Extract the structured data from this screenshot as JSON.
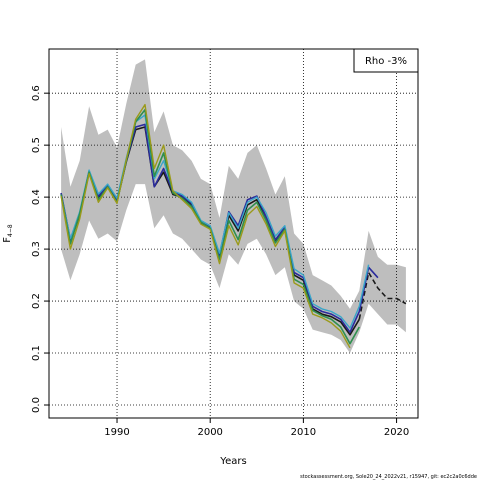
{
  "chart_data": {
    "type": "line",
    "xlabel": "Years",
    "ylabel": "F",
    "ylabel_subscript": "4−8",
    "xlim": [
      1982.7,
      2022.3
    ],
    "ylim": [
      -0.025,
      0.685
    ],
    "x_ticks": [
      1990,
      2000,
      2010,
      2020
    ],
    "y_ticks": [
      0.0,
      0.1,
      0.2,
      0.3,
      0.4,
      0.5,
      0.6
    ],
    "y_tick_labels": [
      "0.0",
      "0.1",
      "0.2",
      "0.3",
      "0.4",
      "0.5",
      "0.6"
    ],
    "grid": "dotted",
    "legend": {
      "text": "Rho -3%",
      "placement": "top-right"
    },
    "footer": "stockassessment.org, Sole20_24_2022v21, r15947, git: ec2c2a0c6dde",
    "band": {
      "color": "#bebebe",
      "x": [
        1984,
        1985,
        1986,
        1987,
        1988,
        1989,
        1990,
        1991,
        1992,
        1993,
        1994,
        1995,
        1996,
        1997,
        1998,
        1999,
        2000,
        2001,
        2002,
        2003,
        2004,
        2005,
        2006,
        2007,
        2008,
        2009,
        2010,
        2011,
        2012,
        2013,
        2014,
        2015,
        2016,
        2017,
        2018,
        2019,
        2020,
        2021
      ],
      "lower": [
        0.3,
        0.24,
        0.29,
        0.355,
        0.32,
        0.33,
        0.315,
        0.375,
        0.425,
        0.425,
        0.34,
        0.365,
        0.33,
        0.32,
        0.3,
        0.28,
        0.27,
        0.225,
        0.29,
        0.27,
        0.31,
        0.32,
        0.29,
        0.25,
        0.265,
        0.2,
        0.185,
        0.145,
        0.14,
        0.135,
        0.125,
        0.1,
        0.14,
        0.195,
        0.175,
        0.155,
        0.155,
        0.14
      ],
      "upper": [
        0.535,
        0.42,
        0.47,
        0.575,
        0.52,
        0.53,
        0.495,
        0.58,
        0.655,
        0.665,
        0.525,
        0.565,
        0.5,
        0.49,
        0.47,
        0.435,
        0.425,
        0.36,
        0.46,
        0.435,
        0.485,
        0.5,
        0.455,
        0.405,
        0.44,
        0.33,
        0.31,
        0.25,
        0.24,
        0.23,
        0.21,
        0.185,
        0.22,
        0.335,
        0.285,
        0.27,
        0.27,
        0.265
      ]
    },
    "series": [
      {
        "color": "#1a1a1a",
        "dash": false,
        "width": 1.6,
        "x": [
          1984,
          1985,
          1986,
          1987,
          1988,
          1989,
          1990,
          1991,
          1992,
          1993,
          1994,
          1995,
          1996,
          1997,
          1998,
          1999,
          2000,
          2001,
          2002,
          2003,
          2004,
          2005,
          2006,
          2007,
          2008,
          2009,
          2010,
          2011,
          2012,
          2013,
          2014,
          2015,
          2016
        ],
        "values": [
          0.405,
          0.315,
          0.365,
          0.448,
          0.4,
          0.42,
          0.392,
          0.468,
          0.53,
          0.535,
          0.42,
          0.448,
          0.405,
          0.4,
          0.385,
          0.35,
          0.34,
          0.285,
          0.365,
          0.335,
          0.385,
          0.395,
          0.36,
          0.315,
          0.34,
          0.25,
          0.24,
          0.185,
          0.175,
          0.17,
          0.16,
          0.135,
          0.165
        ]
      },
      {
        "color": "#1a1a1a",
        "dash": true,
        "width": 1.6,
        "x": [
          2016,
          2017,
          2018,
          2019,
          2020,
          2021
        ],
        "values": [
          0.165,
          0.255,
          0.225,
          0.205,
          0.205,
          0.195
        ]
      },
      {
        "color": "#2b2b9c",
        "dash": false,
        "width": 1.6,
        "x": [
          1984,
          1985,
          1986,
          1987,
          1988,
          1989,
          1990,
          1991,
          1992,
          1993,
          1994,
          1995,
          1996,
          1997,
          1998,
          1999,
          2000,
          2001,
          2002,
          2003,
          2004,
          2005,
          2006,
          2007,
          2008,
          2009,
          2010,
          2011,
          2012,
          2013,
          2014,
          2015,
          2016,
          2017,
          2018
        ],
        "values": [
          0.408,
          0.318,
          0.368,
          0.45,
          0.402,
          0.422,
          0.395,
          0.47,
          0.535,
          0.54,
          0.42,
          0.455,
          0.41,
          0.402,
          0.388,
          0.352,
          0.342,
          0.288,
          0.372,
          0.345,
          0.395,
          0.402,
          0.362,
          0.318,
          0.342,
          0.255,
          0.245,
          0.19,
          0.18,
          0.175,
          0.165,
          0.14,
          0.18,
          0.265,
          0.245
        ]
      },
      {
        "color": "#3aa6c8",
        "dash": false,
        "width": 1.4,
        "x": [
          1984,
          1985,
          1986,
          1987,
          1988,
          1989,
          1990,
          1991,
          1992,
          1993,
          1994,
          1995,
          1996,
          1997,
          1998,
          1999,
          2000,
          2001,
          2002,
          2003,
          2004,
          2005,
          2006,
          2007,
          2008,
          2009,
          2010,
          2011,
          2012,
          2013,
          2014,
          2015,
          2016,
          2017
        ],
        "values": [
          0.405,
          0.32,
          0.372,
          0.452,
          0.406,
          0.425,
          0.398,
          0.475,
          0.545,
          0.558,
          0.435,
          0.47,
          0.412,
          0.405,
          0.39,
          0.355,
          0.345,
          0.292,
          0.37,
          0.34,
          0.39,
          0.4,
          0.37,
          0.325,
          0.345,
          0.262,
          0.25,
          0.195,
          0.185,
          0.18,
          0.17,
          0.148,
          0.19,
          0.27
        ]
      },
      {
        "color": "#2f8f4e",
        "dash": false,
        "width": 1.6,
        "x": [
          1984,
          1985,
          1986,
          1987,
          1988,
          1989,
          1990,
          1991,
          1992,
          1993,
          1994,
          1995,
          1996,
          1997,
          1998,
          1999,
          2000,
          2001,
          2002,
          2003,
          2004,
          2005,
          2006,
          2007,
          2008,
          2009,
          2010,
          2011,
          2012,
          2013,
          2014,
          2015,
          2016
        ],
        "values": [
          0.405,
          0.31,
          0.368,
          0.448,
          0.395,
          0.42,
          0.39,
          0.47,
          0.545,
          0.568,
          0.44,
          0.485,
          0.408,
          0.398,
          0.382,
          0.352,
          0.34,
          0.28,
          0.355,
          0.318,
          0.375,
          0.39,
          0.355,
          0.312,
          0.338,
          0.242,
          0.232,
          0.182,
          0.172,
          0.165,
          0.15,
          0.118,
          0.15
        ]
      },
      {
        "color": "#9a9a1a",
        "dash": false,
        "width": 1.4,
        "x": [
          1984,
          1985,
          1986,
          1987,
          1988,
          1989,
          1990,
          1991,
          1992,
          1993,
          1994,
          1995,
          1996,
          1997,
          1998,
          1999,
          2000,
          2001,
          2002,
          2003,
          2004,
          2005,
          2006,
          2007,
          2008,
          2009,
          2010,
          2011,
          2012,
          2013,
          2014,
          2015
        ],
        "values": [
          0.402,
          0.3,
          0.358,
          0.445,
          0.39,
          0.418,
          0.388,
          0.472,
          0.55,
          0.578,
          0.455,
          0.5,
          0.412,
          0.395,
          0.378,
          0.348,
          0.338,
          0.272,
          0.345,
          0.308,
          0.365,
          0.382,
          0.348,
          0.305,
          0.335,
          0.235,
          0.225,
          0.175,
          0.168,
          0.158,
          0.142,
          0.11
        ]
      }
    ]
  }
}
